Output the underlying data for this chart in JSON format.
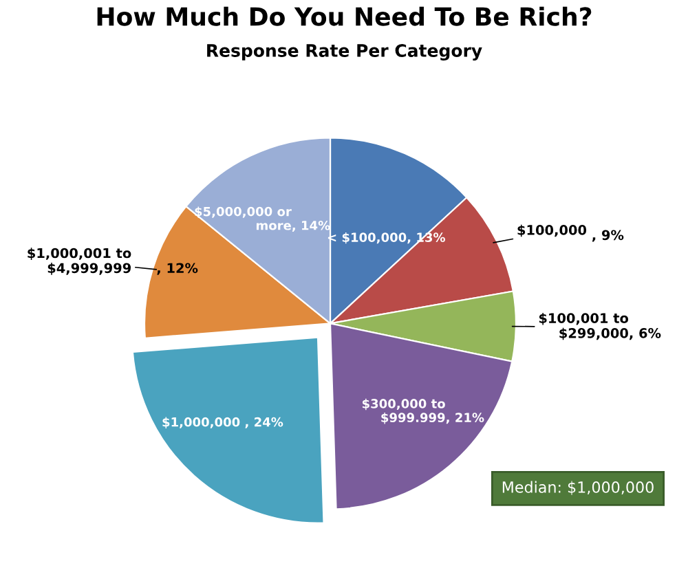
{
  "chart_data": {
    "type": "pie",
    "title": "How Much Do You Need To Be Rich?",
    "subtitle": "Response Rate Per Category",
    "categories": [
      "< $100,000",
      "$100,000 ",
      "$100,001 to\n$299,000",
      "$300,000 to\n$999.999",
      "$1,000,000 ",
      "$1,000,001 to\n$4,999,999",
      "$5,000,000 or\nmore"
    ],
    "values": [
      13,
      9,
      6,
      21,
      24,
      12,
      14
    ],
    "colors": [
      "#4a7ab5",
      "#b94b48",
      "#94b65a",
      "#7a5c9b",
      "#4aa3bf",
      "#e08a3d",
      "#9aaed6"
    ],
    "value_labels": [
      ", 13%",
      ", 9%",
      ", 6%",
      ", 21%",
      ", 24%",
      ", 12%",
      ", 14%"
    ],
    "annotations": [
      "Median: $1,000,000"
    ]
  }
}
